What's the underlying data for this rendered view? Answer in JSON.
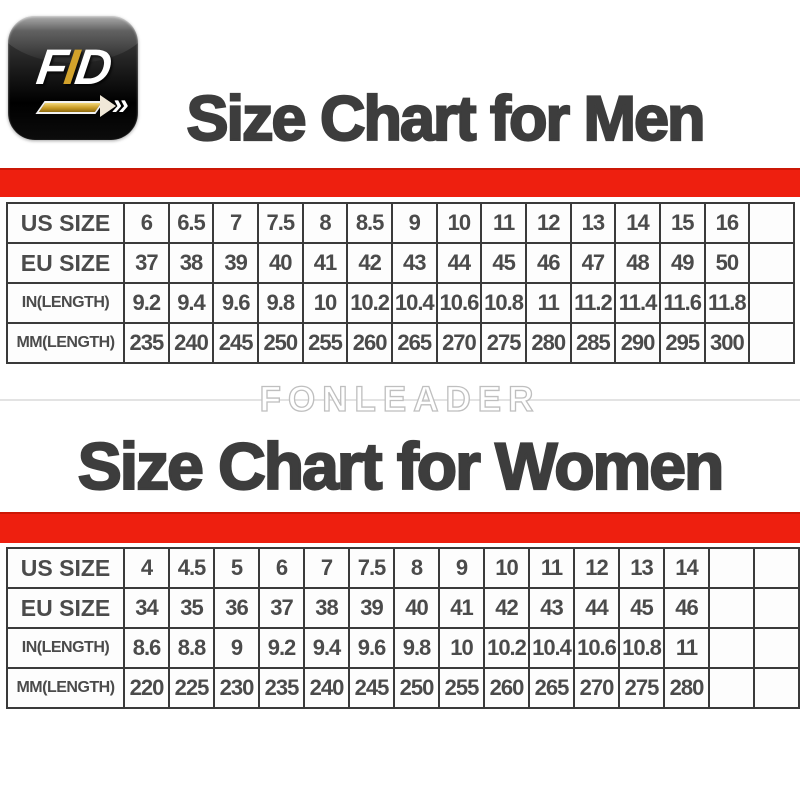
{
  "logo": {
    "letters": [
      "F",
      "I",
      "D"
    ]
  },
  "icons": {
    "logo_chevrons": "»"
  },
  "watermark": "FONLEADER",
  "colors": {
    "accent_red": "#ee1f0f",
    "title_gray": "#3d3d3d",
    "cell_text": "#4b4b4b",
    "table_border": "#3a3a3a",
    "logo_gold": "#d2a22b",
    "watermark_gray": "#bfbfbf"
  },
  "chart_data": [
    {
      "type": "table",
      "title": "Size Chart for Men",
      "trailing_empty_columns": 1,
      "rows": [
        {
          "label": "US SIZE",
          "values": [
            "6",
            "6.5",
            "7",
            "7.5",
            "8",
            "8.5",
            "9",
            "10",
            "11",
            "12",
            "13",
            "14",
            "15",
            "16"
          ]
        },
        {
          "label": "EU SIZE",
          "values": [
            "37",
            "38",
            "39",
            "40",
            "41",
            "42",
            "43",
            "44",
            "45",
            "46",
            "47",
            "48",
            "49",
            "50"
          ]
        },
        {
          "label": "IN(LENGTH)",
          "values": [
            "9.2",
            "9.4",
            "9.6",
            "9.8",
            "10",
            "10.2",
            "10.4",
            "10.6",
            "10.8",
            "11",
            "11.2",
            "11.4",
            "11.6",
            "11.8"
          ]
        },
        {
          "label": "MM(LENGTH)",
          "values": [
            "235",
            "240",
            "245",
            "250",
            "255",
            "260",
            "265",
            "270",
            "275",
            "280",
            "285",
            "290",
            "295",
            "300"
          ]
        }
      ]
    },
    {
      "type": "table",
      "title": "Size Chart for Women",
      "trailing_empty_columns": 2,
      "rows": [
        {
          "label": "US SIZE",
          "values": [
            "4",
            "4.5",
            "5",
            "6",
            "7",
            "7.5",
            "8",
            "9",
            "10",
            "11",
            "12",
            "13",
            "14"
          ]
        },
        {
          "label": "EU SIZE",
          "values": [
            "34",
            "35",
            "36",
            "37",
            "38",
            "39",
            "40",
            "41",
            "42",
            "43",
            "44",
            "45",
            "46"
          ]
        },
        {
          "label": "IN(LENGTH)",
          "values": [
            "8.6",
            "8.8",
            "9",
            "9.2",
            "9.4",
            "9.6",
            "9.8",
            "10",
            "10.2",
            "10.4",
            "10.6",
            "10.8",
            "11"
          ]
        },
        {
          "label": "MM(LENGTH)",
          "values": [
            "220",
            "225",
            "230",
            "235",
            "240",
            "245",
            "250",
            "255",
            "260",
            "265",
            "270",
            "275",
            "280"
          ]
        }
      ]
    }
  ]
}
